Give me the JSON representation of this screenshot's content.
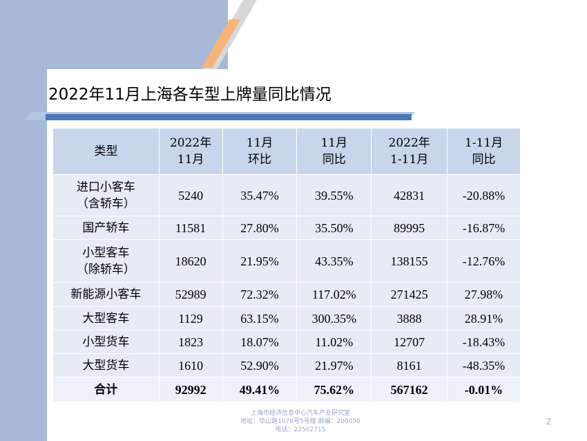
{
  "title": "2022年11月上海各车型上牌量同比情况",
  "table": {
    "headers": [
      [
        "类型"
      ],
      [
        "2022年",
        "11月"
      ],
      [
        "11月",
        "环比"
      ],
      [
        "11月",
        "同比"
      ],
      [
        "2022年",
        "1-11月"
      ],
      [
        "1-11月",
        "同比"
      ]
    ],
    "rows": [
      {
        "type": [
          "进口小客车",
          "（含轿车）"
        ],
        "nov": "5240",
        "mom": "35.47%",
        "yoy": "39.55%",
        "ytd": "42831",
        "ytd_yoy": "-20.88%"
      },
      {
        "type": [
          "国产轿车"
        ],
        "nov": "11581",
        "mom": "27.80%",
        "yoy": "35.50%",
        "ytd": "89995",
        "ytd_yoy": "-16.87%"
      },
      {
        "type": [
          "小型客车",
          "（除轿车）"
        ],
        "nov": "18620",
        "mom": "21.95%",
        "yoy": "43.35%",
        "ytd": "138155",
        "ytd_yoy": "-12.76%"
      },
      {
        "type": [
          "新能源小客车"
        ],
        "nov": "52989",
        "mom": "72.32%",
        "yoy": "117.02%",
        "ytd": "271425",
        "ytd_yoy": "27.98%"
      },
      {
        "type": [
          "大型客车"
        ],
        "nov": "1129",
        "mom": "63.15%",
        "yoy": "300.35%",
        "ytd": "3888",
        "ytd_yoy": "28.91%"
      },
      {
        "type": [
          "小型货车"
        ],
        "nov": "1823",
        "mom": "18.07%",
        "yoy": "11.02%",
        "ytd": "12707",
        "ytd_yoy": "-18.43%"
      },
      {
        "type": [
          "大型货车"
        ],
        "nov": "1610",
        "mom": "52.90%",
        "yoy": "21.97%",
        "ytd": "8161",
        "ytd_yoy": "-48.35%"
      }
    ],
    "total": {
      "type": "合计",
      "nov": "92992",
      "mom": "49.41%",
      "yoy": "75.62%",
      "ytd": "567162",
      "ytd_yoy": "-0.01%"
    }
  },
  "footer": {
    "line1": "上海市经济信息中心汽车产业研究室",
    "line2": "地址：华山路1076号5号楼    邮编：200050",
    "line3": "电话：22502715"
  },
  "page_number": "2",
  "colors": {
    "band": "#a8b8d8",
    "header_cell": "#c8d6ec",
    "body_cell": "#e6ebf5",
    "rule": "#4a78b8",
    "stripe_accent": "#f4b47a"
  }
}
